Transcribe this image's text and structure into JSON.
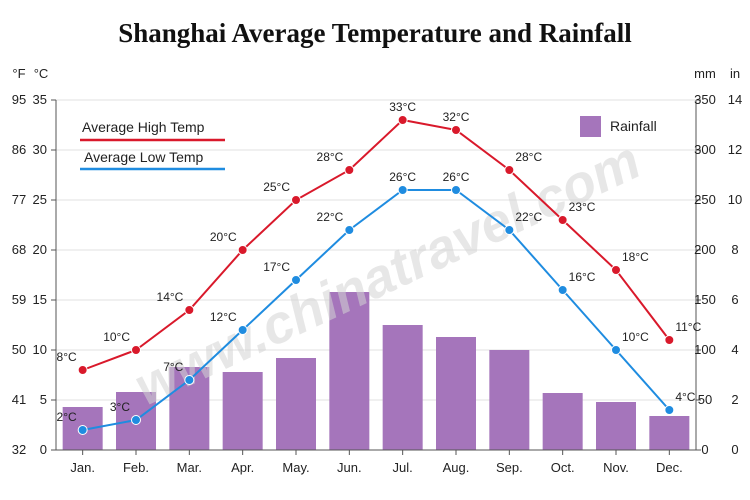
{
  "chart_data": {
    "type": "bar",
    "title": "Shanghai Average Temperature and Rainfall",
    "categories": [
      "Jan.",
      "Feb.",
      "Mar.",
      "Apr.",
      "May.",
      "Jun.",
      "Jul.",
      "Aug.",
      "Sep.",
      "Oct.",
      "Nov.",
      "Dec."
    ],
    "left_axes": {
      "unit_f": "°F",
      "unit_c": "°C",
      "fahrenheit_ticks": [
        "32",
        "41",
        "50",
        "59",
        "68",
        "77",
        "86",
        "95"
      ],
      "celsius_ticks": [
        "0",
        "5",
        "10",
        "15",
        "20",
        "25",
        "30",
        "35"
      ],
      "celsius_range": [
        0,
        35
      ]
    },
    "right_axes": {
      "unit_mm": "mm",
      "unit_in": "in",
      "mm_ticks": [
        "0",
        "50",
        "100",
        "150",
        "200",
        "250",
        "300",
        "350"
      ],
      "in_ticks": [
        "0",
        "2",
        "4",
        "6",
        "8",
        "10",
        "12",
        "14"
      ],
      "mm_range": [
        0,
        350
      ]
    },
    "series": [
      {
        "name": "Average High Temp",
        "kind": "line",
        "color": "#d9192b",
        "values": [
          8,
          10,
          14,
          20,
          25,
          28,
          33,
          32,
          28,
          23,
          18,
          11
        ],
        "labels": [
          "8°C",
          "10°C",
          "14°C",
          "20°C",
          "25°C",
          "28°C",
          "33°C",
          "32°C",
          "28°C",
          "23°C",
          "18°C",
          "11°C"
        ]
      },
      {
        "name": "Average Low Temp",
        "kind": "line",
        "color": "#1f8ce0",
        "values": [
          2,
          3,
          7,
          12,
          17,
          22,
          26,
          26,
          22,
          16,
          10,
          4
        ],
        "labels": [
          "2°C",
          "3°C",
          "7°C",
          "12°C",
          "17°C",
          "22°C",
          "26°C",
          "26°C",
          "22°C",
          "16°C",
          "10°C",
          "4°C"
        ]
      },
      {
        "name": "Rainfall",
        "kind": "bar",
        "color": "#a575bb",
        "values": [
          43,
          58,
          83,
          78,
          92,
          158,
          125,
          113,
          100,
          57,
          48,
          34
        ]
      }
    ],
    "legend_position": "top (highs/lows left, rainfall right)",
    "grid": true,
    "watermark": "www.chinatravel.com"
  }
}
